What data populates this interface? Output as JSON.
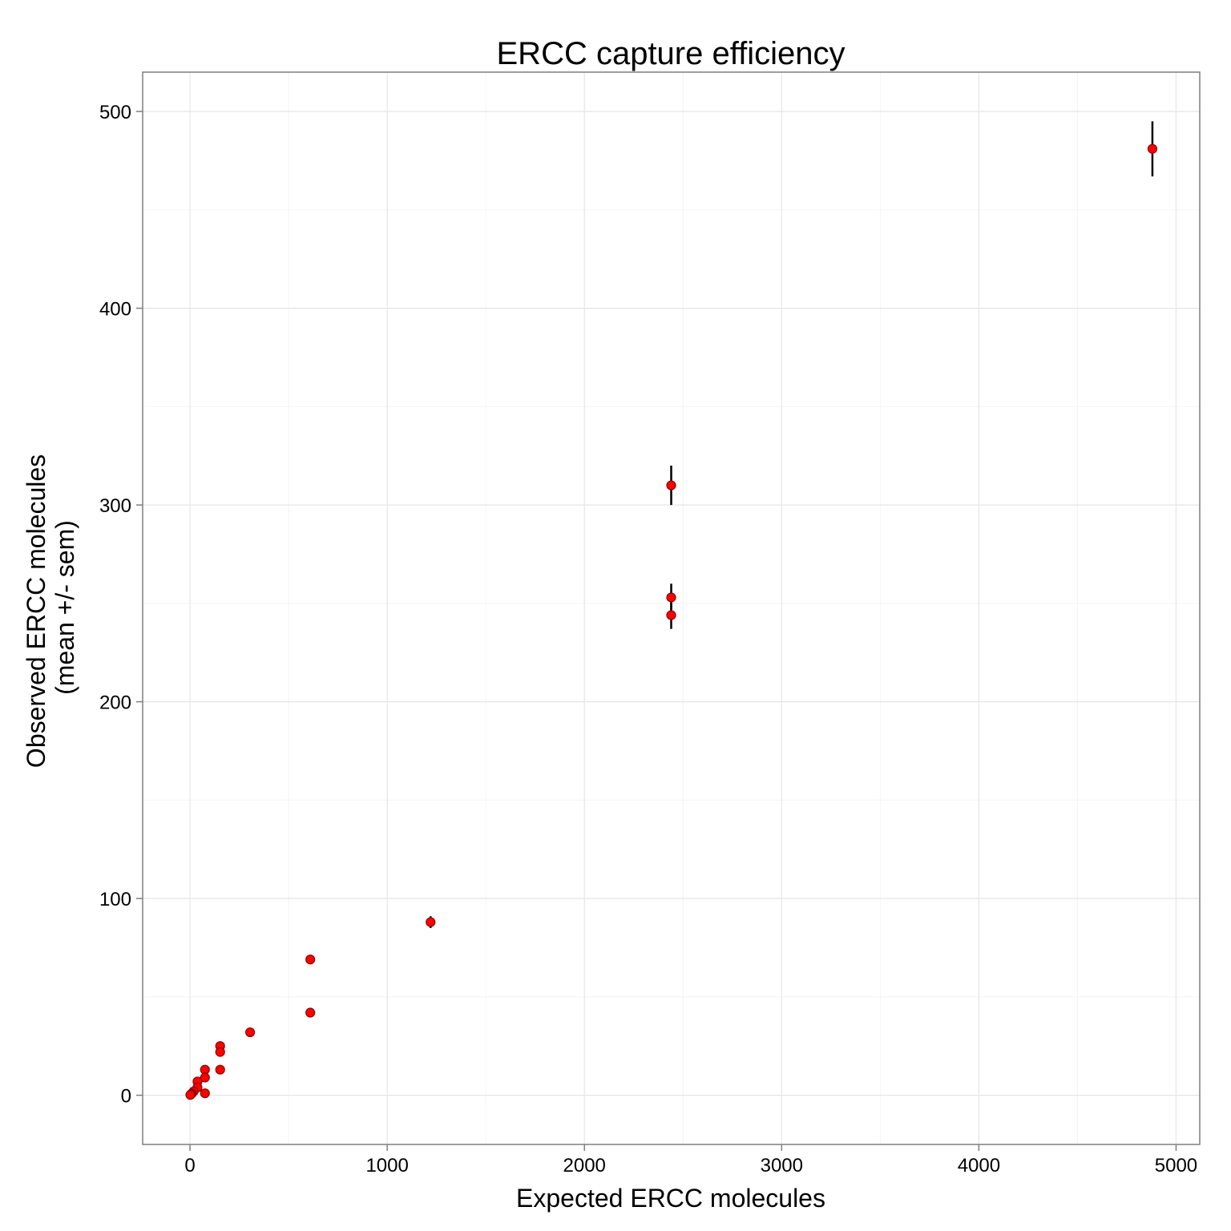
{
  "chart_data": {
    "type": "scatter",
    "title": "ERCC capture efficiency",
    "xlabel": "Expected ERCC molecules",
    "ylabel_lines": [
      "Observed ERCC molecules",
      "(mean +/- sem)"
    ],
    "xlim": [
      -240,
      5120
    ],
    "ylim": [
      -25,
      520
    ],
    "x_ticks": [
      0,
      1000,
      2000,
      3000,
      4000,
      5000
    ],
    "y_ticks": [
      0,
      100,
      200,
      300,
      400,
      500
    ],
    "x_minor": [
      500,
      1500,
      2500,
      3500,
      4500
    ],
    "y_minor": [
      50,
      150,
      250,
      350,
      450
    ],
    "grid": true,
    "point_color": "#ff0000",
    "point_edge_color": "#8b0000",
    "errorbar_color": "#000000",
    "points": [
      {
        "x": 4880,
        "y": 481,
        "lo": 467,
        "hi": 495
      },
      {
        "x": 2440,
        "y": 310,
        "lo": 300,
        "hi": 320
      },
      {
        "x": 2440,
        "y": 253,
        "lo": 246,
        "hi": 260
      },
      {
        "x": 2440,
        "y": 244,
        "lo": 237,
        "hi": 251
      },
      {
        "x": 1220,
        "y": 88,
        "lo": 85,
        "hi": 91
      },
      {
        "x": 610,
        "y": 69,
        "lo": 67.5,
        "hi": 70.5
      },
      {
        "x": 610,
        "y": 42,
        "lo": 41,
        "hi": 43
      },
      {
        "x": 305,
        "y": 32,
        "lo": 31,
        "hi": 33
      },
      {
        "x": 153,
        "y": 25,
        "lo": 24.3,
        "hi": 25.7
      },
      {
        "x": 153,
        "y": 22,
        "lo": 21.3,
        "hi": 22.7
      },
      {
        "x": 153,
        "y": 13,
        "lo": 12.4,
        "hi": 13.6
      },
      {
        "x": 76,
        "y": 13,
        "lo": 12.4,
        "hi": 13.6
      },
      {
        "x": 76,
        "y": 9,
        "lo": 8.5,
        "hi": 9.5
      },
      {
        "x": 76,
        "y": 1,
        "lo": 0.7,
        "hi": 1.3
      },
      {
        "x": 38,
        "y": 7,
        "lo": 6.6,
        "hi": 7.4
      },
      {
        "x": 38,
        "y": 4,
        "lo": 3.7,
        "hi": 4.3
      },
      {
        "x": 19,
        "y": 2,
        "lo": 1.8,
        "hi": 2.2
      },
      {
        "x": 10,
        "y": 1,
        "lo": 0.9,
        "hi": 1.1
      },
      {
        "x": 5,
        "y": 0.5,
        "lo": 0.4,
        "hi": 0.6
      },
      {
        "x": 2,
        "y": 0.2,
        "lo": 0.1,
        "hi": 0.3
      }
    ]
  }
}
